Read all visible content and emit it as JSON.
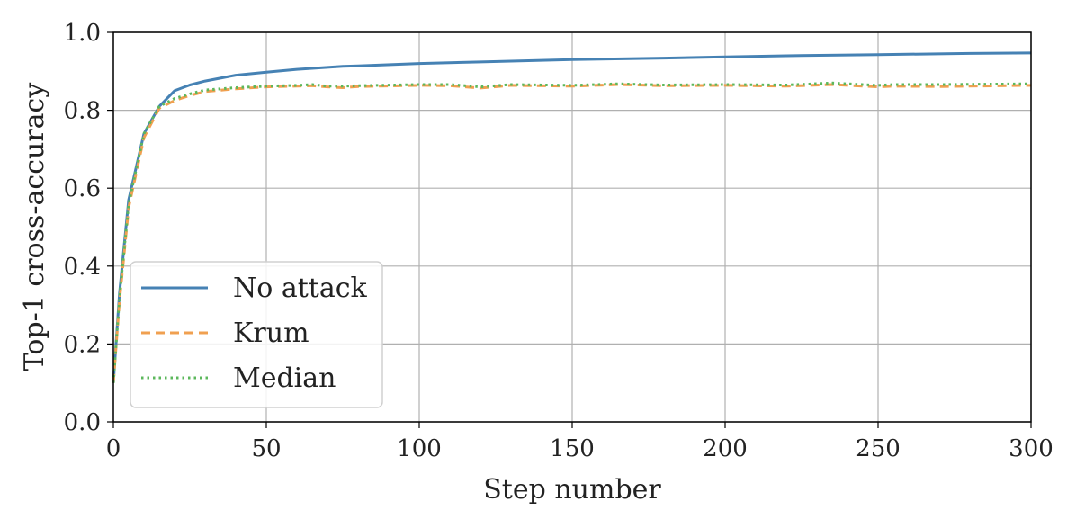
{
  "chart_data": {
    "type": "line",
    "title": "",
    "xlabel": "Step number",
    "ylabel": "Top-1 cross-accuracy",
    "xlim": [
      0,
      300
    ],
    "ylim": [
      0.0,
      1.0
    ],
    "x_ticks": [
      "0",
      "50",
      "100",
      "150",
      "200",
      "250",
      "300"
    ],
    "y_ticks": [
      "0.0",
      "0.2",
      "0.4",
      "0.6",
      "0.8",
      "1.0"
    ],
    "grid": true,
    "legend_position": "lower-left",
    "series": [
      {
        "name": "No attack",
        "color": "#4682b4",
        "style": "solid",
        "x": [
          0,
          2,
          5,
          10,
          15,
          20,
          25,
          30,
          40,
          50,
          60,
          75,
          80,
          100,
          120,
          150,
          180,
          200,
          220,
          250,
          280,
          300
        ],
        "y": [
          0.1,
          0.33,
          0.57,
          0.74,
          0.81,
          0.85,
          0.865,
          0.875,
          0.89,
          0.898,
          0.905,
          0.913,
          0.914,
          0.92,
          0.924,
          0.93,
          0.934,
          0.937,
          0.94,
          0.943,
          0.946,
          0.947
        ]
      },
      {
        "name": "Krum",
        "color": "#f0a050",
        "style": "dashed",
        "x": [
          0,
          2,
          5,
          10,
          15,
          20,
          25,
          30,
          40,
          50,
          60,
          65,
          70,
          75,
          80,
          100,
          110,
          120,
          130,
          150,
          165,
          180,
          200,
          220,
          235,
          250,
          255,
          270,
          300
        ],
        "y": [
          0.1,
          0.31,
          0.55,
          0.73,
          0.805,
          0.825,
          0.838,
          0.848,
          0.855,
          0.86,
          0.862,
          0.863,
          0.86,
          0.858,
          0.861,
          0.864,
          0.863,
          0.857,
          0.864,
          0.862,
          0.866,
          0.863,
          0.864,
          0.862,
          0.866,
          0.86,
          0.862,
          0.861,
          0.864
        ]
      },
      {
        "name": "Median",
        "color": "#5cb85c",
        "style": "dotted",
        "x": [
          0,
          2,
          5,
          10,
          15,
          20,
          25,
          30,
          40,
          50,
          60,
          65,
          70,
          75,
          80,
          100,
          110,
          120,
          130,
          150,
          165,
          180,
          200,
          220,
          235,
          250,
          255,
          270,
          300
        ],
        "y": [
          0.1,
          0.32,
          0.56,
          0.74,
          0.81,
          0.83,
          0.842,
          0.852,
          0.858,
          0.862,
          0.864,
          0.866,
          0.862,
          0.862,
          0.863,
          0.866,
          0.866,
          0.86,
          0.866,
          0.864,
          0.868,
          0.865,
          0.866,
          0.865,
          0.87,
          0.864,
          0.866,
          0.866,
          0.868
        ]
      }
    ]
  }
}
